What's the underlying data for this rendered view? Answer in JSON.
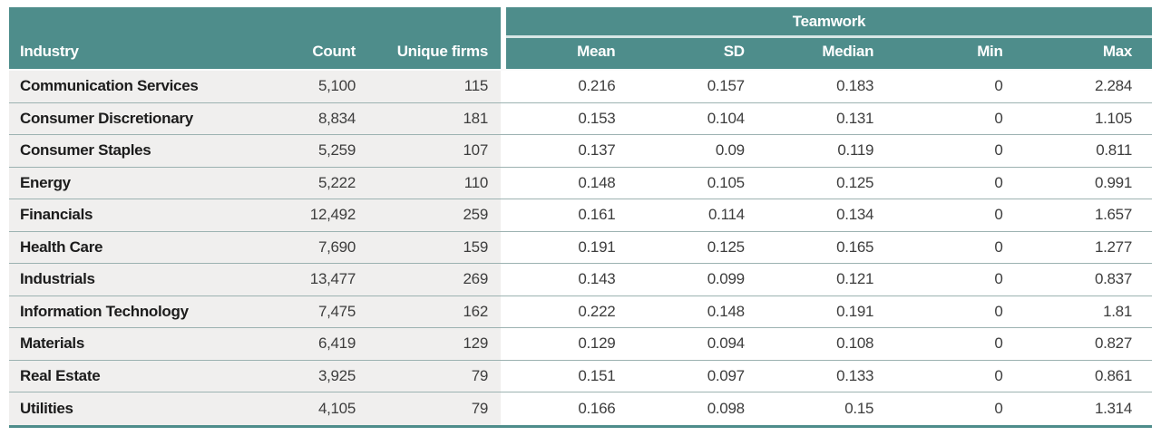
{
  "chart_data": {
    "type": "table",
    "group_header": "Teamwork",
    "left_columns": [
      "Industry",
      "Count",
      "Unique firms"
    ],
    "teamwork_columns": [
      "Mean",
      "SD",
      "Median",
      "Min",
      "Max"
    ],
    "rows": [
      {
        "industry": "Communication Services",
        "count": "5,100",
        "unique_firms": "115",
        "mean": "0.216",
        "sd": "0.157",
        "median": "0.183",
        "min": "0",
        "max": "2.284"
      },
      {
        "industry": "Consumer Discretionary",
        "count": "8,834",
        "unique_firms": "181",
        "mean": "0.153",
        "sd": "0.104",
        "median": "0.131",
        "min": "0",
        "max": "1.105"
      },
      {
        "industry": "Consumer Staples",
        "count": "5,259",
        "unique_firms": "107",
        "mean": "0.137",
        "sd": "0.09",
        "median": "0.119",
        "min": "0",
        "max": "0.811"
      },
      {
        "industry": "Energy",
        "count": "5,222",
        "unique_firms": "110",
        "mean": "0.148",
        "sd": "0.105",
        "median": "0.125",
        "min": "0",
        "max": "0.991"
      },
      {
        "industry": "Financials",
        "count": "12,492",
        "unique_firms": "259",
        "mean": "0.161",
        "sd": "0.114",
        "median": "0.134",
        "min": "0",
        "max": "1.657"
      },
      {
        "industry": "Health Care",
        "count": "7,690",
        "unique_firms": "159",
        "mean": "0.191",
        "sd": "0.125",
        "median": "0.165",
        "min": "0",
        "max": "1.277"
      },
      {
        "industry": "Industrials",
        "count": "13,477",
        "unique_firms": "269",
        "mean": "0.143",
        "sd": "0.099",
        "median": "0.121",
        "min": "0",
        "max": "0.837"
      },
      {
        "industry": "Information Technology",
        "count": "7,475",
        "unique_firms": "162",
        "mean": "0.222",
        "sd": "0.148",
        "median": "0.191",
        "min": "0",
        "max": "1.81"
      },
      {
        "industry": "Materials",
        "count": "6,419",
        "unique_firms": "129",
        "mean": "0.129",
        "sd": "0.094",
        "median": "0.108",
        "min": "0",
        "max": "0.827"
      },
      {
        "industry": "Real Estate",
        "count": "3,925",
        "unique_firms": "79",
        "mean": "0.151",
        "sd": "0.097",
        "median": "0.133",
        "min": "0",
        "max": "0.861"
      },
      {
        "industry": "Utilities",
        "count": "4,105",
        "unique_firms": "79",
        "mean": "0.166",
        "sd": "0.098",
        "median": "0.15",
        "min": "0",
        "max": "1.314"
      }
    ]
  },
  "colors": {
    "header_teal": "#4e8d8b",
    "group_divider_line": "#d7e7e6",
    "left_columns_background": "#f0efee",
    "row_separator": "#9cb2b1",
    "industry_text": "#1c1c1c",
    "number_text": "#3d3d3d",
    "header_text": "#ffffff"
  }
}
